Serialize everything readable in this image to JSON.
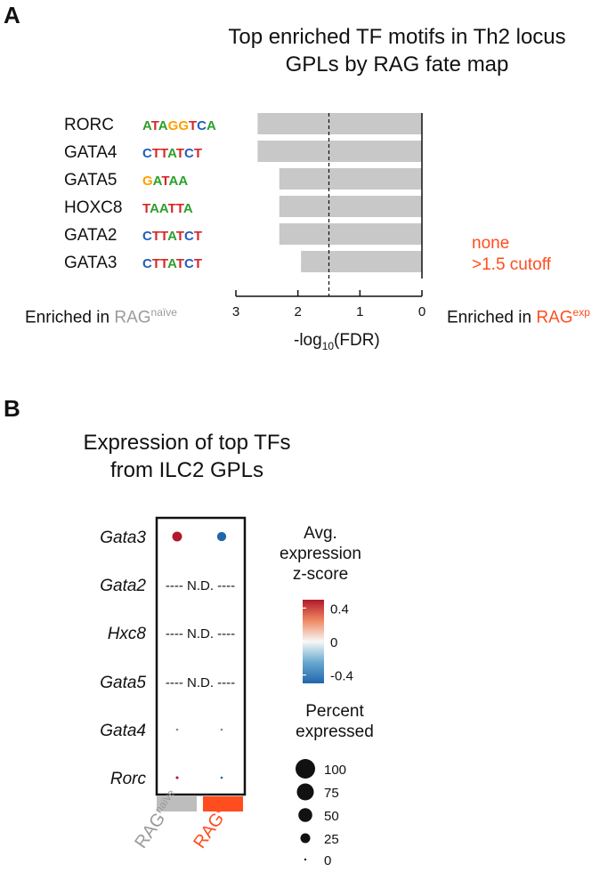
{
  "panel_a": {
    "letter": "A",
    "title_line1": "Top enriched TF motifs in Th2 locus",
    "title_line2": "GPLs by RAG fate map",
    "left_label_prefix": "Enriched in ",
    "left_label_base": "RAG",
    "left_label_sup": "naïve",
    "right_label_prefix": "Enriched in ",
    "right_label_base": "RAG",
    "right_label_sup": "exp",
    "none_line1": "none",
    "none_line2": ">1.5 cutoff",
    "xlabel_prefix": "-log",
    "xlabel_sub": "10",
    "xlabel_suffix": "(FDR)",
    "colors": {
      "bar": "#c8c8c8",
      "orange": "#ff4d1f",
      "gray_text": "#9a9a9a"
    }
  },
  "panel_b": {
    "letter": "B",
    "title_line1": "Expression of top TFs",
    "title_line2": "from ILC2 GPLs",
    "nd_text": "---- N.D. ----",
    "colorbar_title": [
      "Avg.",
      "expression",
      "z-score"
    ],
    "colorbar_ticks": [
      "0.4",
      "0",
      "-0.4"
    ],
    "size_title": [
      "Percent",
      "expressed"
    ],
    "col_labels": [
      {
        "base": "RAG",
        "sup": "naïve",
        "color": "#9a9a9a"
      },
      {
        "base": "RAG",
        "sup": "exp",
        "color": "#ff4d1f"
      }
    ],
    "colors": {
      "high": "#b2182b",
      "low": "#2166ac",
      "mid": "#f7f7f7",
      "small_dot": "#8a8a8a"
    }
  },
  "chart_data": [
    {
      "type": "bar",
      "orientation": "horizontal",
      "categories": [
        "RORC",
        "GATA4",
        "GATA5",
        "HOXC8",
        "GATA2",
        "GATA3"
      ],
      "motifs": [
        "ATAGGTCA",
        "CTTATCT",
        "GATAA",
        "TAATTA",
        "CTTATCT",
        "CTTATCT"
      ],
      "values": [
        2.65,
        2.65,
        2.3,
        2.3,
        2.3,
        1.95
      ],
      "xlim": [
        3,
        0
      ],
      "xticks": [
        "3",
        "2",
        "1",
        "0"
      ],
      "cutoff": 1.5
    },
    {
      "type": "dot",
      "rows": [
        "Gata3",
        "Gata2",
        "Hxc8",
        "Gata5",
        "Gata4",
        "Rorc"
      ],
      "columns": [
        "RAGnaïve",
        "RAGexp"
      ],
      "dots": [
        {
          "row": "Gata3",
          "values": [
            {
              "zscore": 0.5,
              "pct": 25
            },
            {
              "zscore": -0.5,
              "pct": 22
            }
          ]
        },
        {
          "row": "Gata2",
          "nd": true
        },
        {
          "row": "Hxc8",
          "nd": true
        },
        {
          "row": "Gata5",
          "nd": true
        },
        {
          "row": "Gata4",
          "values": [
            {
              "zscore": 0,
              "pct": 1
            },
            {
              "zscore": 0,
              "pct": 1
            }
          ]
        },
        {
          "row": "Rorc",
          "values": [
            {
              "zscore": 0.5,
              "pct": 2
            },
            {
              "zscore": -0.5,
              "pct": 1
            }
          ]
        }
      ],
      "colorbar_range": [
        -0.5,
        0.5
      ],
      "size_legend": [
        "100",
        "75",
        "50",
        "25",
        "0"
      ]
    }
  ]
}
